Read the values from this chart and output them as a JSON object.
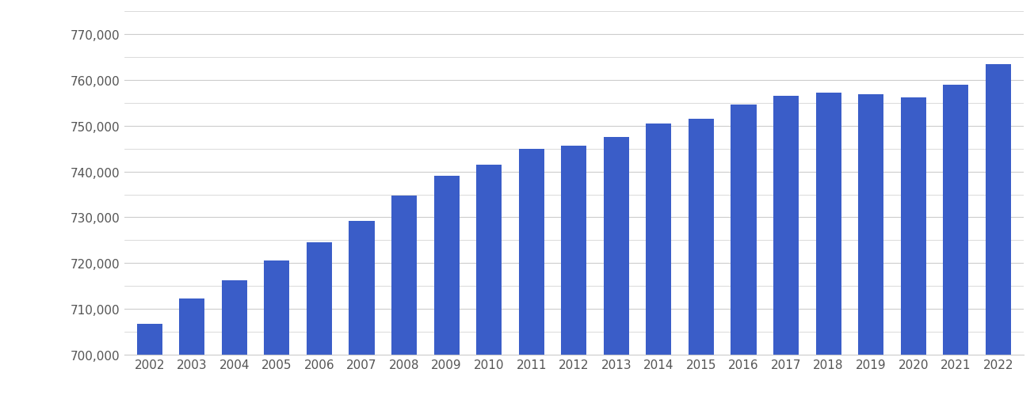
{
  "years": [
    2002,
    2003,
    2004,
    2005,
    2006,
    2007,
    2008,
    2009,
    2010,
    2011,
    2012,
    2013,
    2014,
    2015,
    2016,
    2017,
    2018,
    2019,
    2020,
    2021,
    2022
  ],
  "values": [
    706700,
    712300,
    716200,
    720500,
    724500,
    729200,
    734700,
    739000,
    741500,
    745000,
    745700,
    747500,
    750500,
    751500,
    754700,
    756500,
    757200,
    756800,
    756200,
    759000,
    763500
  ],
  "bar_color": "#3a5dc8",
  "ylim_min": 700000,
  "ylim_max": 775000,
  "yticks": [
    700000,
    710000,
    720000,
    730000,
    740000,
    750000,
    760000,
    770000
  ],
  "background_color": "#ffffff",
  "grid_color": "#cccccc",
  "tick_label_color": "#555555",
  "tick_fontsize": 11,
  "bar_width": 0.6,
  "figsize": [
    13.05,
    5.1
  ],
  "dpi": 100
}
